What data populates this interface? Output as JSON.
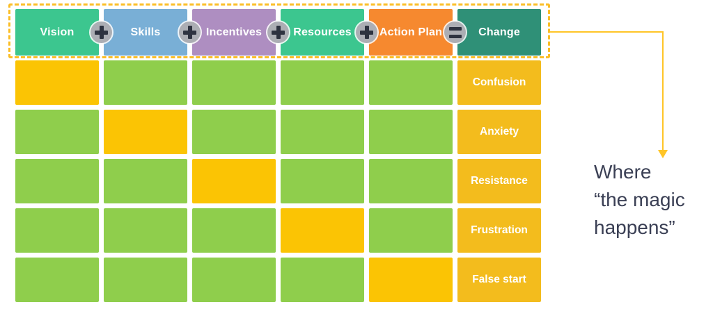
{
  "model": {
    "header": {
      "items": [
        {
          "label": "Vision",
          "color": "#3CC68F"
        },
        {
          "label": "Skills",
          "color": "#79AFD6"
        },
        {
          "label": "Incentives",
          "color": "#AE8EC1"
        },
        {
          "label": "Resources",
          "color": "#3CC68F"
        },
        {
          "label": "Action Plan",
          "color": "#F6892F"
        },
        {
          "label": "Change",
          "color": "#2F9077"
        }
      ],
      "operators": [
        "plus",
        "plus",
        "plus",
        "plus",
        "equals"
      ]
    },
    "rows": [
      {
        "label": "Confusion",
        "cells": [
          "missing",
          "present",
          "present",
          "present",
          "present"
        ]
      },
      {
        "label": "Anxiety",
        "cells": [
          "present",
          "missing",
          "present",
          "present",
          "present"
        ]
      },
      {
        "label": "Resistance",
        "cells": [
          "present",
          "present",
          "missing",
          "present",
          "present"
        ]
      },
      {
        "label": "Frustration",
        "cells": [
          "present",
          "present",
          "present",
          "missing",
          "present"
        ]
      },
      {
        "label": "False start",
        "cells": [
          "present",
          "present",
          "present",
          "present",
          "missing"
        ]
      }
    ]
  },
  "annotation": {
    "lines": [
      "Where",
      "“the magic",
      "happens”"
    ]
  },
  "colors": {
    "present": "#8FCE4C",
    "missing": "#FBC404",
    "outcome_bg": "#F3BC1D",
    "dashed_border": "#FBBE26",
    "arrow": "#FFC527",
    "badge_bg": "#ACAEB4",
    "badge_glyph": "#2E3340",
    "annotation_text": "#3A3F54"
  }
}
